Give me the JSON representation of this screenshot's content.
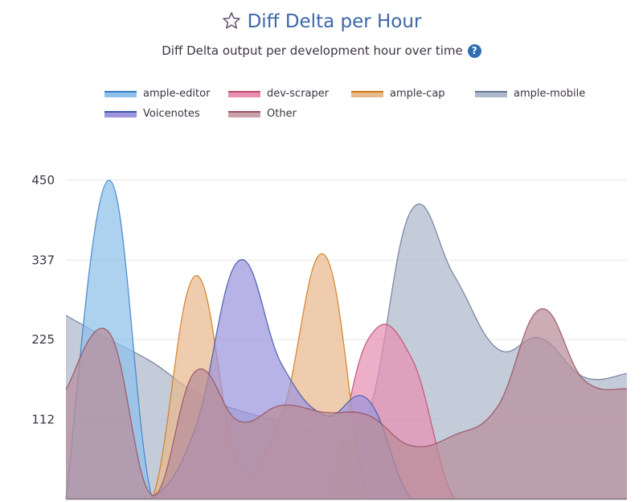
{
  "header": {
    "title": "Diff Delta per Hour",
    "subtitle": "Diff Delta output per development hour over time",
    "help_icon": "?"
  },
  "chart_data": {
    "type": "area",
    "title": "Diff Delta per Hour",
    "subtitle": "Diff Delta output per development hour over time",
    "xlabel": "",
    "ylabel": "",
    "xlim": [
      0,
      13
    ],
    "ylim": [
      0,
      450
    ],
    "yticks": [
      112,
      225,
      337,
      450
    ],
    "ytick_labels": [
      "112",
      "225",
      "337",
      "450"
    ],
    "grid": true,
    "legend_placement": "top",
    "x": [
      0,
      1,
      2,
      3,
      4,
      5,
      6,
      7,
      8,
      9,
      10,
      11,
      12,
      13
    ],
    "series": [
      {
        "name": "ample-mobile",
        "fill": "#adb8cb",
        "line": "#6b7a9a",
        "values": [
          259,
          225,
          193,
          150,
          125,
          110,
          95,
          120,
          407,
          315,
          212,
          227,
          172,
          177
        ]
      },
      {
        "name": "ample-editor",
        "fill": "#8dc0ea",
        "line": "#3b7fc8",
        "values": [
          0,
          450,
          0,
          0,
          0,
          0,
          0,
          0,
          0,
          0,
          0,
          0,
          0,
          0
        ]
      },
      {
        "name": "dev-scraper",
        "fill": "#e68fb2",
        "line": "#c0506f",
        "values": [
          0,
          0,
          0,
          0,
          0,
          0,
          0,
          225,
          200,
          0,
          0,
          0,
          0,
          0
        ]
      },
      {
        "name": "ample-cap",
        "fill": "#e8b98d",
        "line": "#d07a1a",
        "values": [
          0,
          0,
          0,
          315,
          50,
          120,
          344,
          0,
          0,
          0,
          0,
          0,
          0,
          0
        ]
      },
      {
        "name": "Voicenotes",
        "fill": "#9d96dc",
        "line": "#3f58a8",
        "values": [
          0,
          0,
          0,
          100,
          336,
          190,
          118,
          140,
          0,
          0,
          0,
          0,
          0,
          0
        ]
      },
      {
        "name": "Other",
        "fill": "#b98e9a",
        "line": "#9a5060",
        "values": [
          155,
          235,
          5,
          180,
          110,
          132,
          122,
          118,
          75,
          90,
          130,
          268,
          168,
          155
        ]
      }
    ]
  },
  "legend": [
    {
      "label": "ample-editor",
      "fill": "#8dc0ea",
      "line": "#3b7fc8"
    },
    {
      "label": "dev-scraper",
      "fill": "#e68fb2",
      "line": "#c0506f"
    },
    {
      "label": "ample-cap",
      "fill": "#e8b98d",
      "line": "#d07a1a"
    },
    {
      "label": "ample-mobile",
      "fill": "#adb8cb",
      "line": "#6b7a9a"
    },
    {
      "label": "Voicenotes",
      "fill": "#9d96dc",
      "line": "#3f58a8"
    },
    {
      "label": "Other",
      "fill": "#c9a3ab",
      "line": "#9a5060"
    }
  ]
}
